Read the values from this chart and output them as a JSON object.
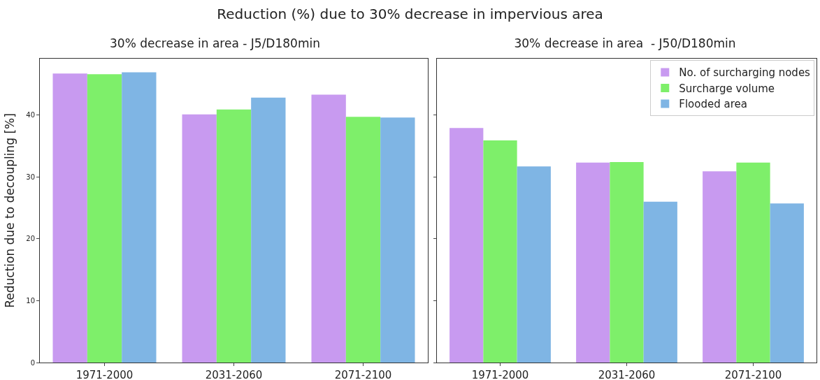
{
  "chart_data": [
    {
      "type": "bar",
      "title": "30% decrease in area - J5/D180min",
      "ylabel": "Reduction due to decoupling [%]",
      "annotations": [
        "Reduction (%) due to 30% decrease in impervious area"
      ],
      "categories": [
        "1971-2000",
        "2031-2060",
        "2071-2100"
      ],
      "series": [
        {
          "color": "#c89af0",
          "values": [
            46.7,
            40.1,
            43.3
          ]
        },
        {
          "color": "#7eef6a",
          "values": [
            46.6,
            40.9,
            39.7
          ]
        },
        {
          "color": "#7fb5e4",
          "values": [
            46.9,
            42.8,
            39.6
          ]
        }
      ],
      "ylim": [
        0,
        49.1
      ],
      "yticks": [
        0,
        10,
        20,
        30,
        40
      ],
      "grid": false
    },
    {
      "type": "bar",
      "title": "30% decrease in area  - J50/D180min",
      "categories": [
        "1971-2000",
        "2031-2060",
        "2071-2100"
      ],
      "series": [
        {
          "name": "No. of surcharging nodes",
          "color": "#c89af0",
          "values": [
            37.9,
            32.3,
            30.9
          ]
        },
        {
          "name": "Surcharge volume",
          "color": "#7eef6a",
          "values": [
            35.9,
            32.4,
            32.3
          ]
        },
        {
          "name": "Flooded area",
          "color": "#7fb5e4",
          "values": [
            31.7,
            26.0,
            25.7
          ]
        }
      ],
      "ylim": [
        0,
        49.1
      ],
      "yticks": [
        0,
        10,
        20,
        30,
        40
      ],
      "tick_labels": "x",
      "grid": false,
      "legend": "top right"
    }
  ]
}
